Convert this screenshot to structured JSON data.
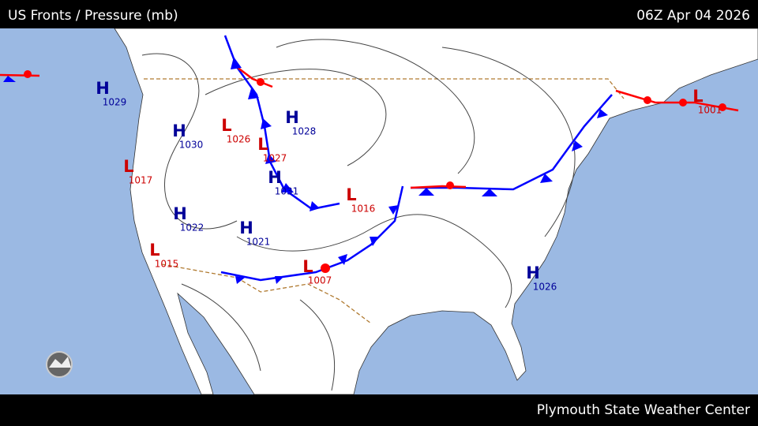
{
  "header": {
    "title": "US Fronts / Pressure (mb)",
    "time": "06Z Apr 04 2026"
  },
  "footer": {
    "credit": "Plymouth State Weather Center"
  },
  "pressure_centers": [
    {
      "type": "H",
      "value": "1029"
    },
    {
      "type": "H",
      "value": "1030"
    },
    {
      "type": "L",
      "value": "1026"
    },
    {
      "type": "L",
      "value": "1027"
    },
    {
      "type": "H",
      "value": "1028"
    },
    {
      "type": "H",
      "value": "1031"
    },
    {
      "type": "L",
      "value": "1017"
    },
    {
      "type": "H",
      "value": "1022"
    },
    {
      "type": "H",
      "value": "1021"
    },
    {
      "type": "L",
      "value": "1015"
    },
    {
      "type": "L",
      "value": "1016"
    },
    {
      "type": "L",
      "value": "1007"
    },
    {
      "type": "H",
      "value": "1026"
    },
    {
      "type": "L",
      "value": "1001"
    }
  ]
}
